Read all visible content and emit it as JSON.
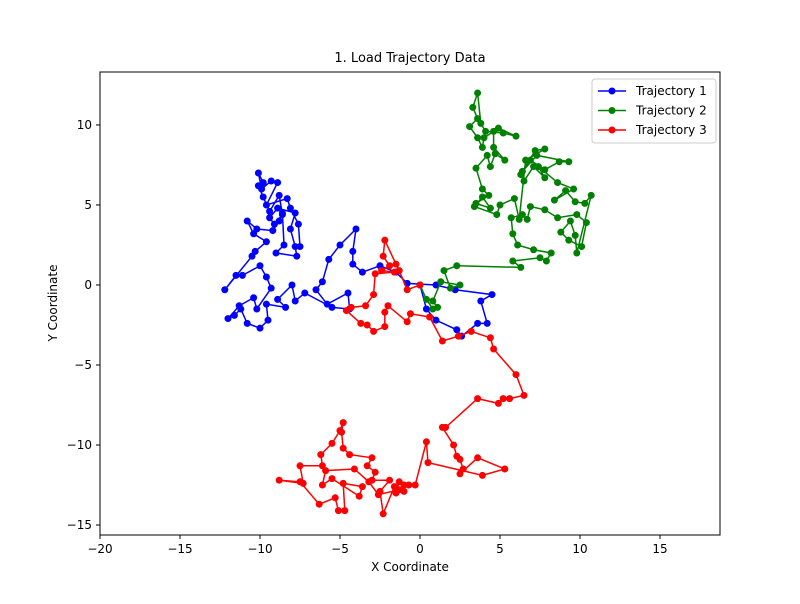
{
  "chart_data": {
    "type": "line",
    "title": "1. Load Trajectory Data",
    "xlabel": "X Coordinate",
    "ylabel": "Y Coordinate",
    "xlim": [
      -20,
      18.75
    ],
    "ylim": [
      -15.625,
      13.31
    ],
    "xticks": [
      {
        "value": -20,
        "label": "−20"
      },
      {
        "value": -15,
        "label": "−15"
      },
      {
        "value": -10,
        "label": "−10"
      },
      {
        "value": -5,
        "label": "−5"
      },
      0,
      5,
      10,
      15
    ],
    "yticks": [
      {
        "value": -15,
        "label": "−15"
      },
      {
        "value": -10,
        "label": "−10"
      },
      {
        "value": -5,
        "label": "−5"
      },
      0,
      5,
      10
    ],
    "legend": "upper right",
    "grid": false,
    "series": [
      {
        "name": "Trajectory 1",
        "color": "#0000ff",
        "x": [
          0,
          0.4,
          1,
          2.3,
          2.6,
          3.6,
          4.2,
          3.8,
          4.5,
          2.2,
          1,
          -0.8,
          -1.5,
          -2.5,
          -3.6,
          -4.2,
          -4.2,
          -4,
          -5,
          -5.7,
          -6.1,
          -6.5,
          -5.8,
          -4.5,
          -4.4,
          -5.5,
          -7.2,
          -7.8,
          -8,
          -8.9,
          -8.4,
          -9.6,
          -9.5,
          -10,
          -10.8,
          -11.2,
          -11.6,
          -12,
          -11.3,
          -10.4,
          -10.2,
          -9.3,
          -9.6,
          -10,
          -11.1,
          -11.5,
          -12.2,
          -10.5,
          -10.3,
          -9.6,
          -10.4,
          -10.8,
          -10.2,
          -9.2,
          -8.8,
          -8.6,
          -8.5,
          -9,
          -7.7,
          -7.8,
          -8.1,
          -7.8,
          -8.9,
          -9.4,
          -9.1,
          -8.6,
          -8.8,
          -9.4,
          -9.8,
          -10.1,
          -9.8,
          -10.1,
          -9.9,
          -9.3,
          -8.9,
          -9.6,
          -8.3,
          -8.1,
          -7.6,
          -7.5
        ],
        "values": [
          0,
          -1.5,
          -2.2,
          -2.8,
          -3.2,
          -2.4,
          -2.4,
          -1,
          -0.6,
          -0.3,
          0,
          0.1,
          0.8,
          1.2,
          0.8,
          1.3,
          2.1,
          3.5,
          2.5,
          1.6,
          0.2,
          -0.3,
          -1.2,
          -0.5,
          -1.5,
          -1.4,
          -0.5,
          -1,
          0,
          -0.9,
          -1.4,
          -1.2,
          -2.2,
          -2.7,
          -2.4,
          -1.5,
          -1.9,
          -2.1,
          -1.3,
          -0.8,
          -1.5,
          -0.2,
          0.5,
          1.2,
          0.6,
          0.6,
          -0.3,
          1.8,
          2.1,
          2.7,
          3.2,
          4,
          3.5,
          3.4,
          4,
          4.5,
          2.5,
          2,
          1.8,
          2.4,
          3.5,
          4.5,
          4.8,
          4.2,
          3.8,
          4.4,
          5.6,
          4.6,
          5.5,
          6.2,
          6.4,
          7,
          6,
          6.5,
          6.4,
          5,
          5.4,
          4.8,
          3.8,
          2.4
        ]
      },
      {
        "name": "Trajectory 2",
        "color": "#008000",
        "x": [
          0,
          0.4,
          0.8,
          1.1,
          0.8,
          1.3,
          2.5,
          1.9,
          1.5,
          2.3,
          6.3,
          5.8,
          7.5,
          7.9,
          8.2,
          7.1,
          6.1,
          5.8,
          5.7,
          6.4,
          6.7,
          6.9,
          7.8,
          8.6,
          9.8,
          10.4,
          10.1,
          9.3,
          8.8,
          9.4,
          9.7,
          9.8,
          10.7,
          10.3,
          9.7,
          9.1,
          8.4,
          9.6,
          8.6,
          7.4,
          7.8,
          7.1,
          6.5,
          6.3,
          6.9,
          7.8,
          8.7,
          9.3,
          7.3,
          6.4,
          7.2,
          7.8,
          6.6,
          6.2,
          5.9,
          5,
          4.8,
          3.4,
          3.9,
          4.4,
          3.5,
          4.3,
          3.9,
          3.5,
          4.2,
          4.4,
          4.7,
          5.3,
          4.6,
          4.6,
          4,
          3.9,
          3.6,
          3.1,
          3.6,
          3.3,
          3.6,
          3.8,
          4.1,
          5.2,
          6,
          4.9
        ],
        "values": [
          0,
          -0.9,
          -1.5,
          -1.4,
          -1,
          0.2,
          0,
          -0.2,
          0.9,
          1.2,
          1.1,
          1.5,
          1.7,
          1.5,
          2,
          2.2,
          2.5,
          3.2,
          4.2,
          4.4,
          4.1,
          4.9,
          4.7,
          4.2,
          4.4,
          3.9,
          2.4,
          2.8,
          3.3,
          4,
          3.1,
          2,
          5.6,
          5.1,
          5.2,
          5.9,
          5.3,
          6,
          6.4,
          7.4,
          6.7,
          7.4,
          6.5,
          6.9,
          7.8,
          7.2,
          7.7,
          7.7,
          8.1,
          7.1,
          8.4,
          8.5,
          7.8,
          4.1,
          5.4,
          5,
          4.4,
          4.9,
          5.5,
          4.8,
          5.1,
          5.6,
          6,
          7.3,
          8.1,
          7.4,
          8.2,
          7.8,
          8.6,
          9.6,
          9.2,
          8.6,
          9.2,
          9.9,
          10.4,
          11.1,
          12,
          10.1,
          9.6,
          9.5,
          9.3,
          9.8
        ]
      },
      {
        "name": "Trajectory 3",
        "color": "#ff0000",
        "x": [
          0,
          -0.8,
          -1.3,
          -1.5,
          -2.2,
          -2.3,
          -1.9,
          -2.4,
          -1.6,
          -2.8,
          -2.9,
          -3.4,
          -4.3,
          -4.6,
          -3.7,
          -3.3,
          -2.9,
          -2.2,
          -2.2,
          -2,
          -0.8,
          -0.6,
          0.6,
          1.4,
          2.4,
          3.2,
          4.4,
          4.6,
          6,
          6.5,
          5.6,
          5.2,
          4.9,
          3.6,
          1.6,
          1.4,
          2.1,
          2.3,
          2.5,
          2.7,
          2.5,
          3.6,
          5.3,
          3.9,
          0.5,
          0.4,
          -0.3,
          -1.3,
          -1.5,
          -1,
          -1.6,
          -2.3,
          -2.5,
          -1.9,
          -3,
          -2.8,
          -3.3,
          -3,
          -4.4,
          -4.8,
          -4.9,
          -4.8,
          -5,
          -5.5,
          -6.2,
          -6.1,
          -7.5,
          -7.3,
          -8.8,
          -7.5,
          -6.3,
          -5.3,
          -5.1,
          -4.7,
          -4.8,
          -3.6,
          -3.8,
          -5.5,
          -6.1,
          -5.9,
          -4.1,
          -3.2,
          -2.6,
          -1.3,
          -0.7,
          -1
        ],
        "values": [
          0,
          -0.3,
          0.9,
          1.3,
          2.8,
          1.8,
          1.2,
          0.9,
          0.8,
          0.7,
          -0.6,
          -1.3,
          -1.4,
          -1.6,
          -2.4,
          -2.5,
          -2.9,
          -2.6,
          -1.7,
          -1.3,
          -2.3,
          -1.8,
          -2,
          -3.5,
          -3.2,
          -2.9,
          -3.3,
          -4,
          -5.6,
          -6.9,
          -7.1,
          -7.1,
          -7.4,
          -7.1,
          -8.9,
          -8.9,
          -10,
          -10.7,
          -10.9,
          -11.5,
          -11.8,
          -10.8,
          -11.5,
          -11.9,
          -11.1,
          -9.8,
          -12.5,
          -12.3,
          -13,
          -12.9,
          -12.6,
          -14.3,
          -12.9,
          -12.2,
          -12.2,
          -11.7,
          -11.3,
          -10.8,
          -10.6,
          -10.2,
          -9.2,
          -8.6,
          -9.1,
          -9.9,
          -10.6,
          -11.3,
          -11.3,
          -12.4,
          -12.2,
          -12.3,
          -13.7,
          -13.3,
          -14.1,
          -14.1,
          -12.4,
          -12.6,
          -13.2,
          -12.1,
          -12.5,
          -11.6,
          -11.5,
          -12.3,
          -13.1,
          -12.8,
          -12.5,
          -12.5
        ]
      }
    ]
  }
}
